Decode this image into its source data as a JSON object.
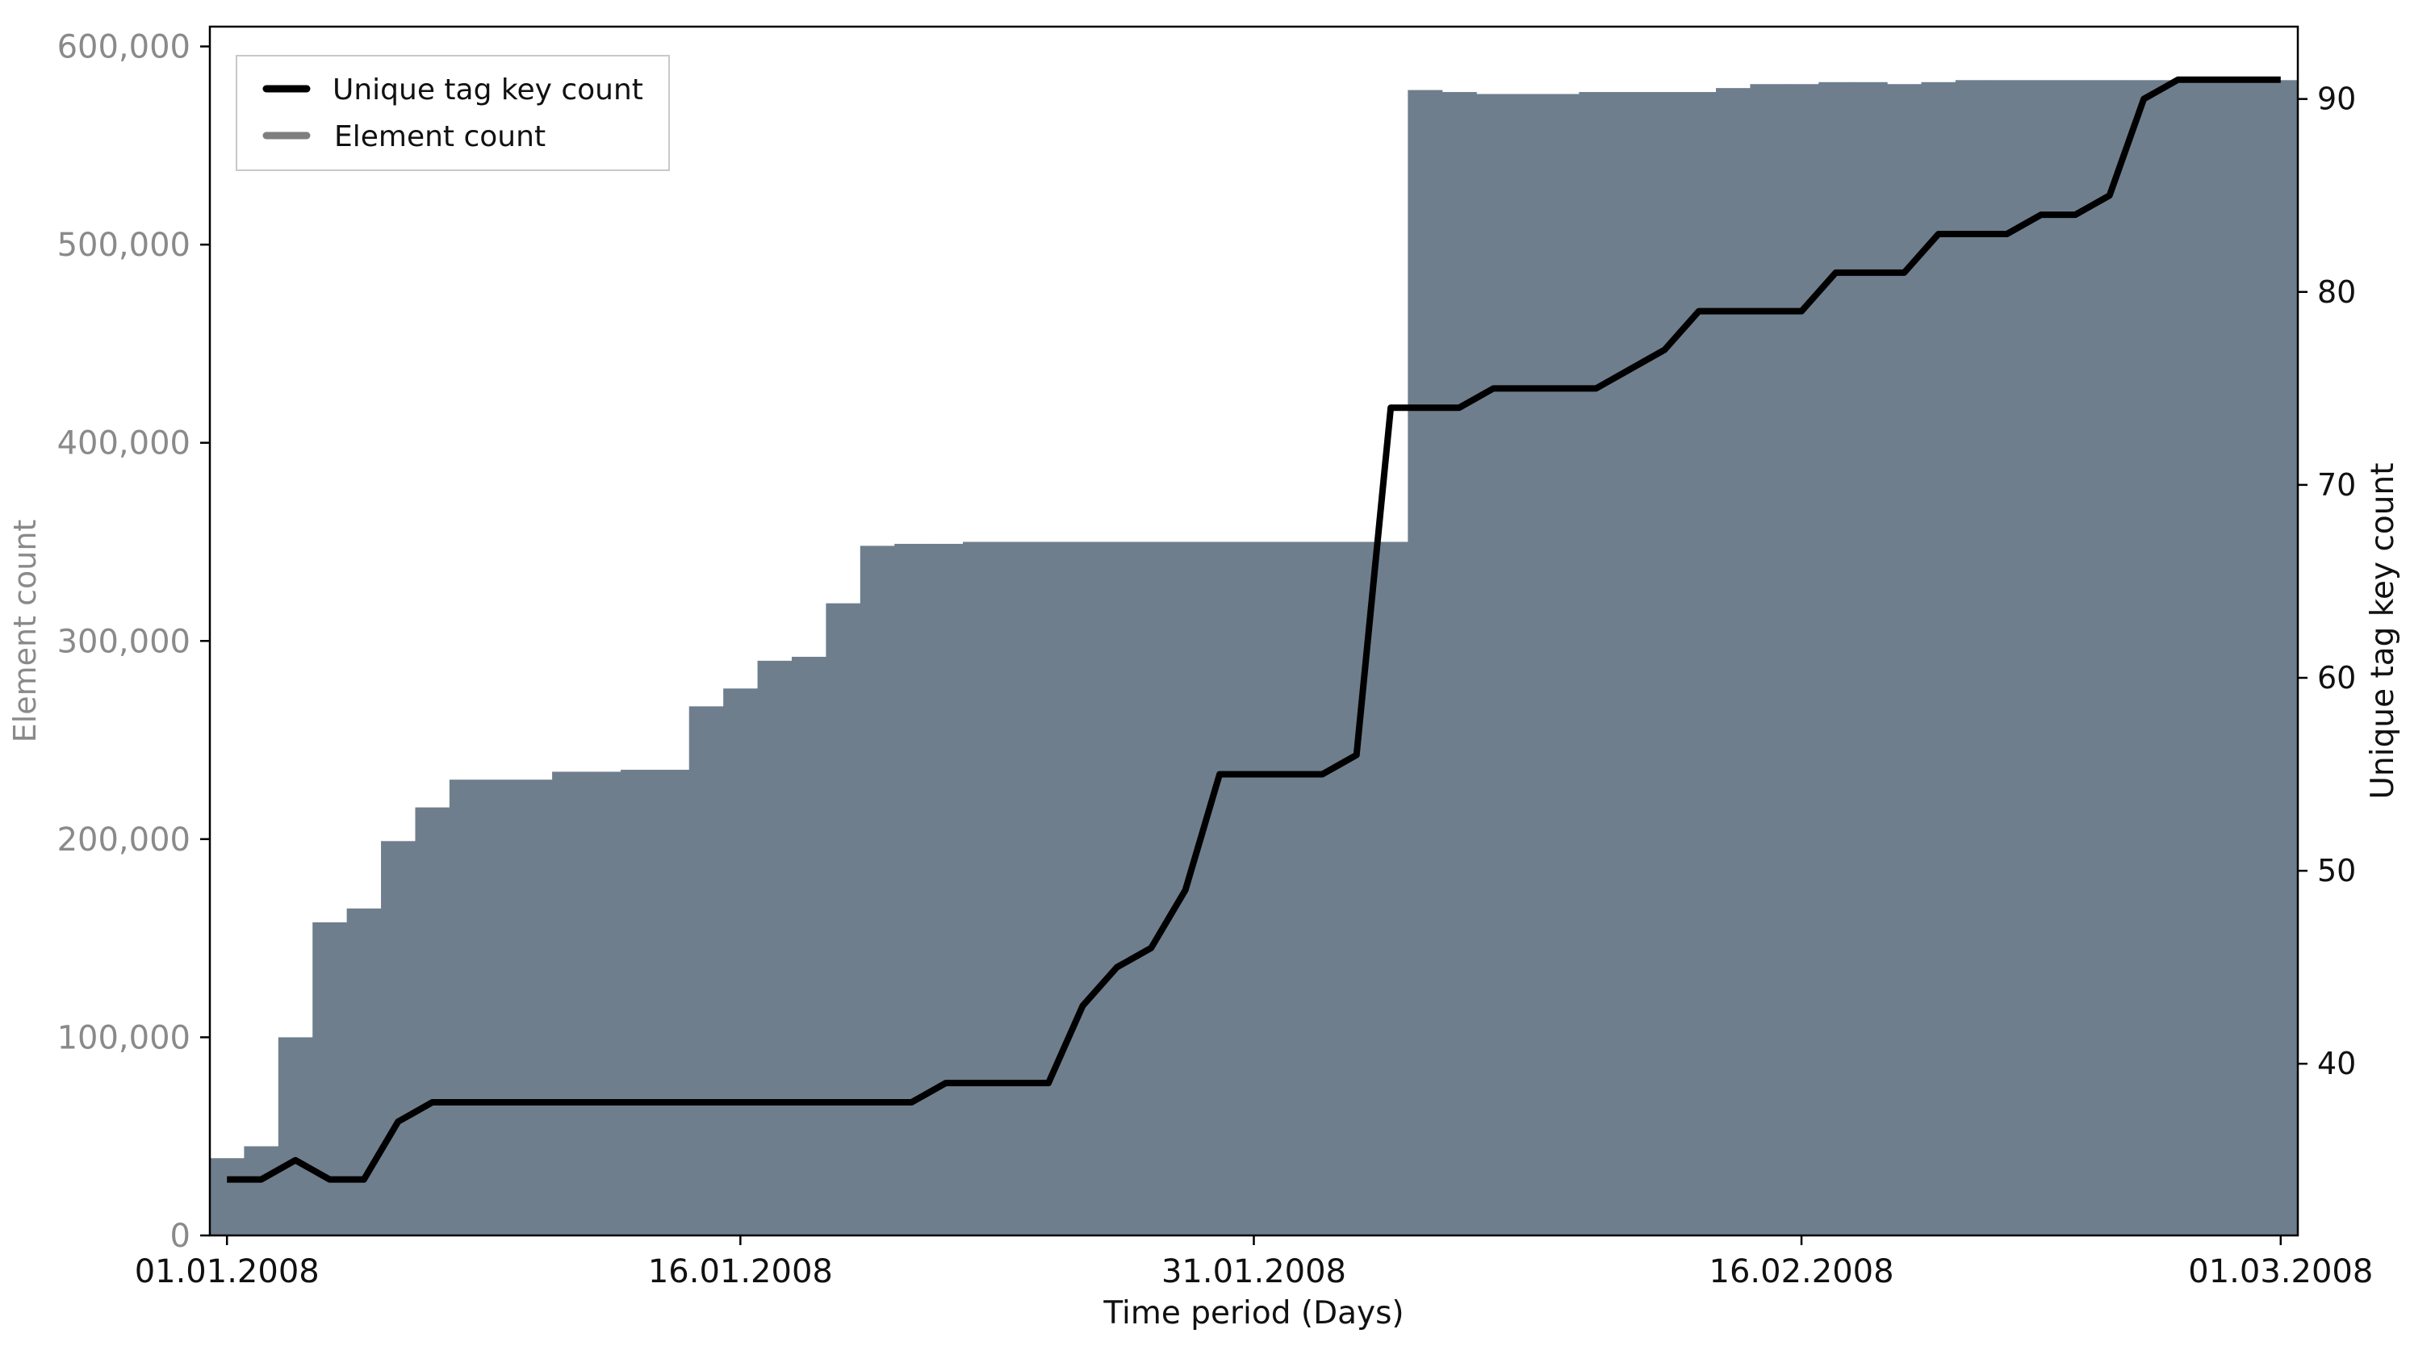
{
  "chart_data": {
    "type": "bar+line",
    "title": "",
    "xlabel": "Time period (Days)",
    "ylabel_left": "Element count",
    "ylabel_right": "Unique tag key count",
    "xlim_days": [
      -0.5,
      60.5
    ],
    "ylim_left": [
      0,
      610000
    ],
    "ylim_right": [
      31.1,
      93.75
    ],
    "grid": false,
    "legend_position": "top-left",
    "x_ticks": [
      {
        "day": 0,
        "label": "01.01.2008"
      },
      {
        "day": 15,
        "label": "16.01.2008"
      },
      {
        "day": 30,
        "label": "31.01.2008"
      },
      {
        "day": 46,
        "label": "16.02.2008"
      },
      {
        "day": 60,
        "label": "01.03.2008"
      }
    ],
    "y_left_ticks": [
      {
        "value": 0,
        "label": "0"
      },
      {
        "value": 100000,
        "label": "100,000"
      },
      {
        "value": 200000,
        "label": "200,000"
      },
      {
        "value": 300000,
        "label": "300,000"
      },
      {
        "value": 400000,
        "label": "400,000"
      },
      {
        "value": 500000,
        "label": "500,000"
      },
      {
        "value": 600000,
        "label": "600,000"
      }
    ],
    "y_right_ticks": [
      {
        "value": 40,
        "label": "40"
      },
      {
        "value": 50,
        "label": "50"
      },
      {
        "value": 60,
        "label": "60"
      },
      {
        "value": 70,
        "label": "70"
      },
      {
        "value": 80,
        "label": "80"
      },
      {
        "value": 90,
        "label": "90"
      }
    ],
    "series": [
      {
        "name": "Element count",
        "type": "bar",
        "axis": "left",
        "color": "#6f7e8d",
        "legend_color": "#7f7f7f",
        "x_days": [
          0,
          1,
          2,
          3,
          4,
          5,
          6,
          7,
          8,
          9,
          10,
          11,
          12,
          13,
          14,
          15,
          16,
          17,
          18,
          19,
          20,
          21,
          22,
          23,
          24,
          25,
          26,
          27,
          28,
          29,
          30,
          31,
          32,
          33,
          34,
          35,
          36,
          37,
          38,
          39,
          40,
          41,
          42,
          43,
          44,
          45,
          46,
          47,
          48,
          49,
          50,
          51,
          52,
          53,
          54,
          55,
          56,
          57,
          58,
          59,
          60
        ],
        "values": [
          39000,
          45000,
          100000,
          158000,
          165000,
          199000,
          216000,
          230000,
          230000,
          230000,
          234000,
          234000,
          235000,
          235000,
          267000,
          276000,
          290000,
          292000,
          319000,
          348000,
          349000,
          349000,
          350000,
          350000,
          350000,
          350000,
          350000,
          350000,
          350000,
          350000,
          350000,
          350000,
          350000,
          350000,
          350000,
          578000,
          577000,
          576000,
          576000,
          576000,
          577000,
          577000,
          577000,
          577000,
          579000,
          581000,
          581000,
          582000,
          582000,
          581000,
          582000,
          583000,
          583000,
          583000,
          583000,
          583000,
          583000,
          583000,
          583000,
          583000,
          583000
        ]
      },
      {
        "name": "Unique tag key count",
        "type": "line",
        "axis": "right",
        "color": "#000000",
        "points": [
          [
            0,
            34
          ],
          [
            1,
            34
          ],
          [
            2,
            35
          ],
          [
            3,
            34
          ],
          [
            4,
            34
          ],
          [
            5,
            37
          ],
          [
            6,
            38
          ],
          [
            7,
            38
          ],
          [
            8,
            38
          ],
          [
            9,
            38
          ],
          [
            10,
            38
          ],
          [
            11,
            38
          ],
          [
            12,
            38
          ],
          [
            13,
            38
          ],
          [
            14,
            38
          ],
          [
            15,
            38
          ],
          [
            16,
            38
          ],
          [
            17,
            38
          ],
          [
            18,
            38
          ],
          [
            19,
            38
          ],
          [
            20,
            38
          ],
          [
            21,
            39
          ],
          [
            22,
            39
          ],
          [
            23,
            39
          ],
          [
            24,
            39
          ],
          [
            25,
            43
          ],
          [
            26,
            45
          ],
          [
            27,
            46
          ],
          [
            28,
            49
          ],
          [
            29,
            55
          ],
          [
            30,
            55
          ],
          [
            31,
            55
          ],
          [
            32,
            55
          ],
          [
            33,
            56
          ],
          [
            34,
            74
          ],
          [
            35,
            74
          ],
          [
            36,
            74
          ],
          [
            37,
            75
          ],
          [
            38,
            75
          ],
          [
            39,
            75
          ],
          [
            40,
            75
          ],
          [
            41,
            76
          ],
          [
            42,
            77
          ],
          [
            43,
            79
          ],
          [
            44,
            79
          ],
          [
            45,
            79
          ],
          [
            46,
            79
          ],
          [
            47,
            81
          ],
          [
            48,
            81
          ],
          [
            49,
            81
          ],
          [
            50,
            83
          ],
          [
            51,
            83
          ],
          [
            52,
            83
          ],
          [
            53,
            84
          ],
          [
            54,
            84
          ],
          [
            55,
            85
          ],
          [
            56,
            90
          ],
          [
            57,
            91
          ],
          [
            58,
            91
          ],
          [
            59,
            91
          ],
          [
            60,
            91
          ]
        ]
      }
    ]
  }
}
